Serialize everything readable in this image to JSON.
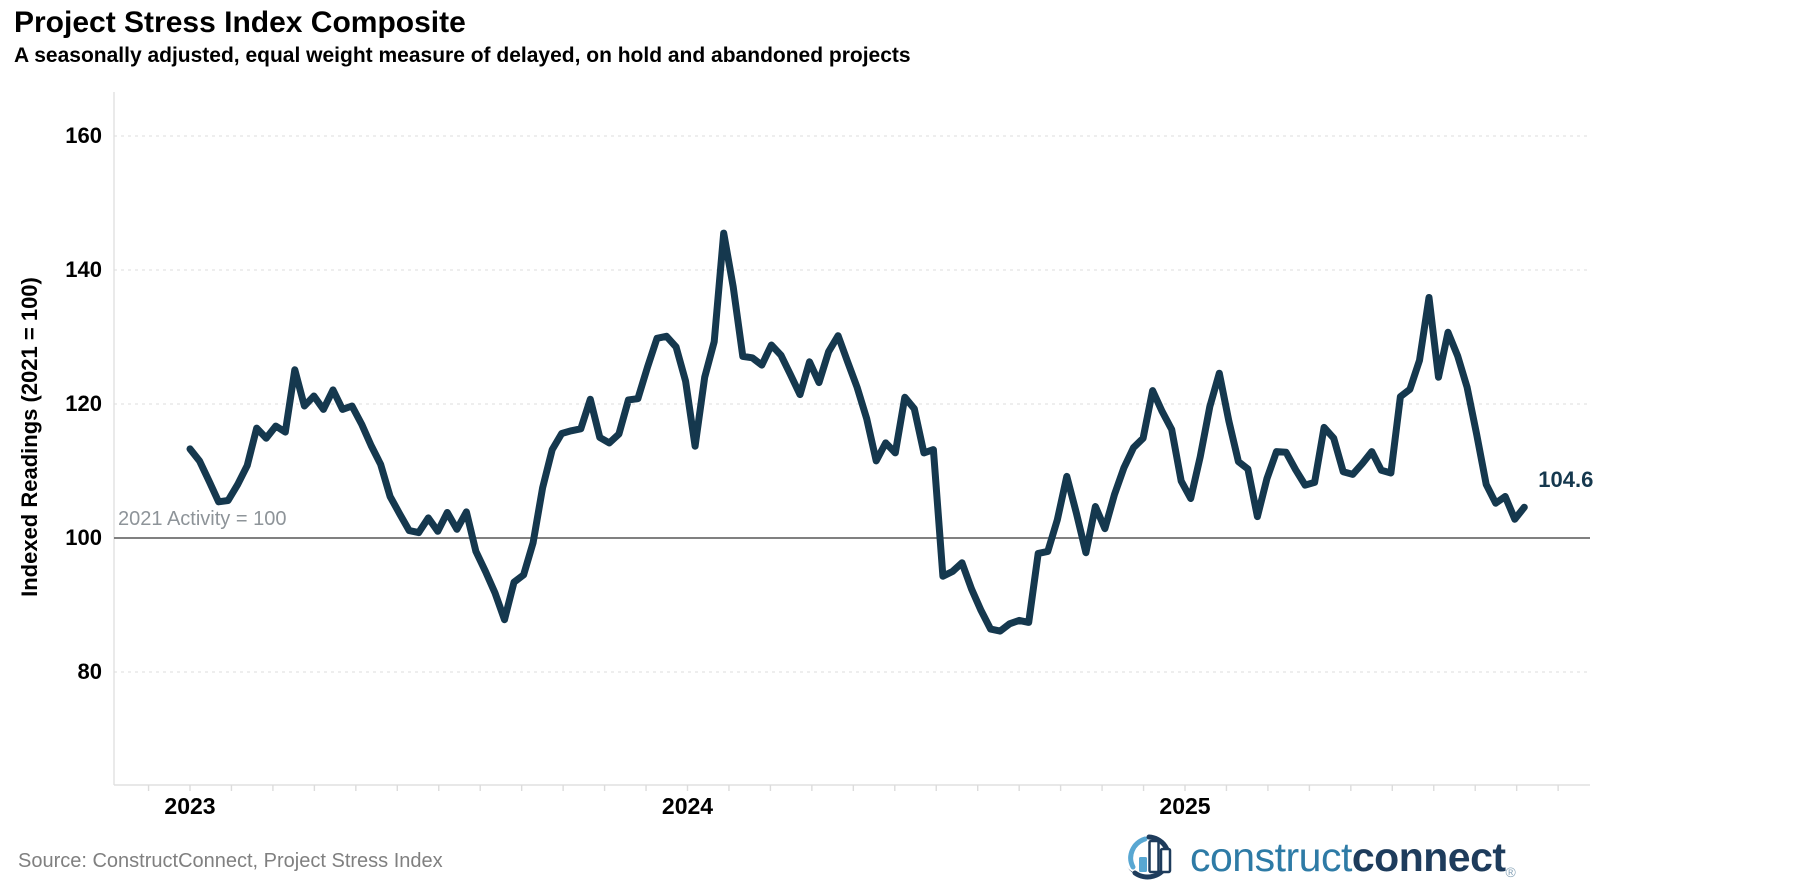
{
  "header": {
    "title": "Project Stress Index Composite",
    "subtitle": "A seasonally adjusted, equal weight measure of delayed, on hold and abandoned projects"
  },
  "source": "Source: ConstructConnect, Project Stress Index",
  "logo": {
    "construct": "construct",
    "connect": "connect",
    "mark": "®"
  },
  "colors": {
    "line": "#15384e",
    "last_value_text": "#15384e",
    "reference_line": "#808080",
    "grid": "#e8e8e8",
    "axis": "#e0e0e0",
    "month_tick": "#dcdcdc",
    "tick_text": "#000000",
    "annotation_text": "#8e9499",
    "source_text": "#808080",
    "logo_construct": "#2e7ba6",
    "logo_connect": "#1e3c5c"
  },
  "chart_data": {
    "type": "line",
    "title": "Project Stress Index Composite",
    "subtitle": "A seasonally adjusted, equal weight measure of delayed, on hold and abandoned projects",
    "xlabel": "",
    "ylabel": "Indexed Readings (2021 = 100)",
    "ylim": [
      63,
      166.5
    ],
    "grid": "horizontal-dashed",
    "legend": "none",
    "frequency": "weekly",
    "points_per_year": 52.2,
    "x_start_year": 2023,
    "y_ticks": [
      {
        "label": "160",
        "value": 160
      },
      {
        "label": "140",
        "value": 140
      },
      {
        "label": "120",
        "value": 120
      },
      {
        "label": "100",
        "value": 100
      },
      {
        "label": "80",
        "value": 80
      }
    ],
    "x_ticks": [
      {
        "label": "2023",
        "year_offset": 0
      },
      {
        "label": "2024",
        "year_offset": 1
      },
      {
        "label": "2025",
        "year_offset": 2
      }
    ],
    "reference_line": {
      "value": 100,
      "label": "2021 Activity = 100"
    },
    "last_point_label": "104.6",
    "values": [
      113.3,
      111.5,
      108.5,
      105.4,
      105.6,
      108.0,
      110.8,
      116.4,
      114.9,
      116.7,
      115.8,
      125.1,
      119.7,
      121.2,
      119.2,
      122.1,
      119.2,
      119.7,
      117.0,
      113.8,
      111.0,
      106.2,
      103.6,
      101.1,
      100.8,
      103.0,
      101.0,
      103.8,
      101.3,
      103.9,
      98.0,
      95.0,
      91.8,
      87.8,
      93.4,
      94.5,
      99.3,
      107.5,
      113.2,
      115.6,
      116.0,
      116.3,
      120.7,
      115.0,
      114.2,
      115.5,
      120.6,
      120.8,
      125.5,
      129.8,
      130.1,
      128.5,
      123.4,
      113.7,
      124.0,
      129.3,
      145.5,
      137.5,
      127.1,
      126.9,
      125.8,
      128.8,
      127.3,
      124.4,
      121.4,
      126.3,
      123.2,
      127.8,
      130.2,
      126.3,
      122.5,
      117.8,
      111.5,
      114.2,
      112.7,
      121.0,
      119.3,
      112.7,
      113.2,
      94.3,
      95.0,
      96.3,
      92.4,
      89.2,
      86.4,
      86.1,
      87.2,
      87.7,
      87.4,
      97.7,
      98.0,
      102.7,
      109.2,
      103.7,
      97.8,
      104.7,
      101.4,
      106.5,
      110.5,
      113.5,
      114.9,
      122.0,
      118.9,
      116.2,
      108.5,
      105.9,
      112.1,
      119.6,
      124.6,
      117.5,
      111.4,
      110.3,
      103.2,
      108.9,
      112.9,
      112.8,
      110.2,
      107.9,
      108.3,
      116.5,
      114.9,
      109.9,
      109.5,
      111.1,
      112.9,
      110.1,
      109.7,
      121.1,
      122.2,
      126.5,
      135.9,
      124.0,
      130.7,
      127.2,
      122.5,
      115.5,
      108.0,
      105.2,
      106.2,
      102.8,
      104.6
    ]
  }
}
